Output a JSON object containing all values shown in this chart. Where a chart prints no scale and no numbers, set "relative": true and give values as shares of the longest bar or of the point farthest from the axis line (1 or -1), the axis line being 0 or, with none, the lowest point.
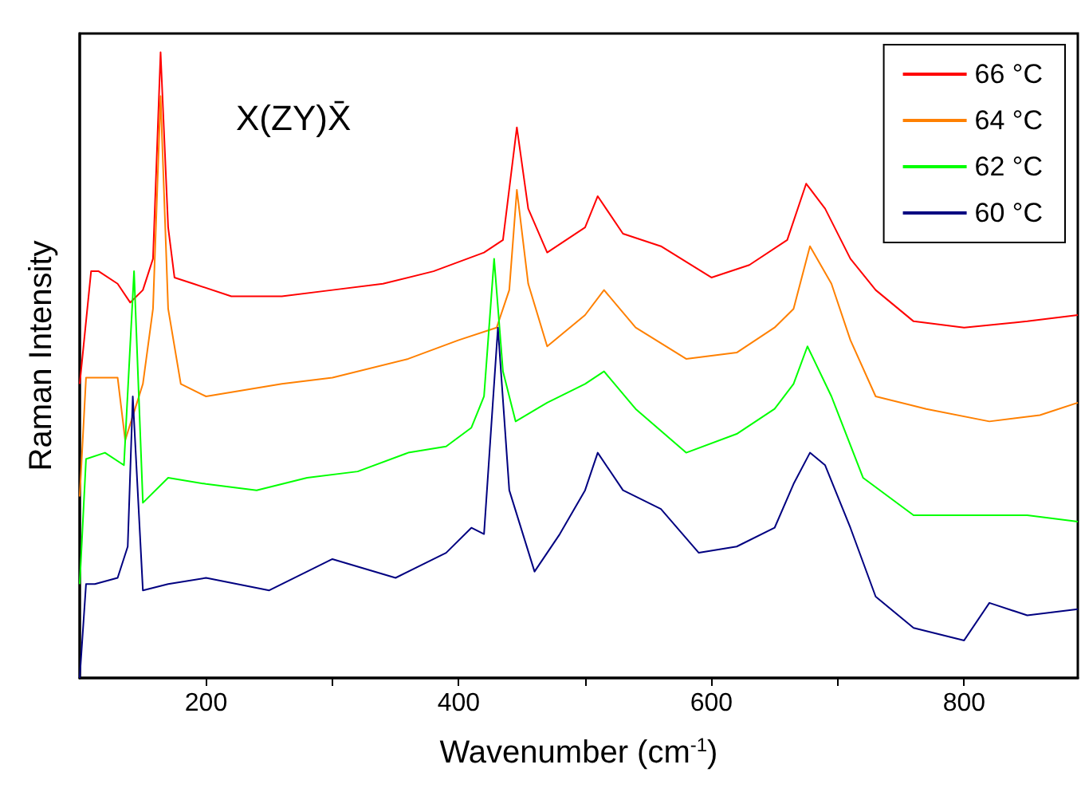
{
  "chart_data": {
    "type": "line",
    "relative": true,
    "xlabel": "Wavenumber (cm$^{-1}$)",
    "ylabel": "Raman Intensity",
    "annotations": [
      "X(ZY)X̄"
    ],
    "legend": "top right",
    "grid": false,
    "marker": "none",
    "line_style": "solid",
    "tick_labels": "x",
    "xlim": [
      100,
      890
    ],
    "xticks": [
      200,
      {
        "value": 300,
        "label": null
      },
      400,
      {
        "value": 500,
        "label": null
      },
      600,
      {
        "value": 700,
        "label": null
      },
      800
    ],
    "series": [
      {
        "name": "66 °C",
        "color": "#ff0000",
        "x": [
          100,
          109,
          115,
          130,
          140,
          150,
          158,
          164,
          170,
          175,
          190,
          220,
          260,
          300,
          340,
          380,
          420,
          435,
          446,
          455,
          470,
          500,
          510,
          530,
          560,
          600,
          630,
          660,
          675,
          690,
          710,
          730,
          760,
          800,
          850,
          890
        ],
        "values": [
          0.47,
          0.65,
          0.65,
          0.63,
          0.6,
          0.62,
          0.67,
          1.0,
          0.72,
          0.64,
          0.63,
          0.61,
          0.61,
          0.62,
          0.63,
          0.65,
          0.68,
          0.7,
          0.88,
          0.75,
          0.68,
          0.72,
          0.77,
          0.71,
          0.69,
          0.64,
          0.66,
          0.7,
          0.79,
          0.75,
          0.67,
          0.62,
          0.57,
          0.56,
          0.57,
          0.58
        ]
      },
      {
        "name": "64 °C",
        "color": "#ff8000",
        "x": [
          100,
          105,
          130,
          136,
          150,
          158,
          164,
          170,
          180,
          200,
          260,
          300,
          360,
          400,
          430,
          440,
          446,
          455,
          470,
          500,
          515,
          540,
          580,
          620,
          650,
          665,
          678,
          695,
          710,
          730,
          770,
          820,
          860,
          890
        ],
        "values": [
          0.29,
          0.48,
          0.48,
          0.38,
          0.47,
          0.59,
          0.93,
          0.59,
          0.47,
          0.45,
          0.47,
          0.48,
          0.51,
          0.54,
          0.56,
          0.62,
          0.78,
          0.63,
          0.53,
          0.58,
          0.62,
          0.56,
          0.51,
          0.52,
          0.56,
          0.59,
          0.69,
          0.63,
          0.54,
          0.45,
          0.43,
          0.41,
          0.42,
          0.44
        ]
      },
      {
        "name": "62 °C",
        "color": "#00ff00",
        "x": [
          100,
          105,
          120,
          135,
          143,
          150,
          170,
          200,
          240,
          280,
          320,
          360,
          390,
          410,
          420,
          428,
          435,
          445,
          470,
          500,
          515,
          540,
          580,
          620,
          650,
          665,
          676,
          695,
          720,
          760,
          800,
          850,
          890
        ],
        "values": [
          0.15,
          0.35,
          0.36,
          0.34,
          0.65,
          0.28,
          0.32,
          0.31,
          0.3,
          0.32,
          0.33,
          0.36,
          0.37,
          0.4,
          0.45,
          0.67,
          0.49,
          0.41,
          0.44,
          0.47,
          0.49,
          0.43,
          0.36,
          0.39,
          0.43,
          0.47,
          0.53,
          0.45,
          0.32,
          0.26,
          0.26,
          0.26,
          0.25
        ]
      },
      {
        "name": "60 °C",
        "color": "#000080",
        "x": [
          100,
          105,
          112,
          130,
          138,
          142,
          150,
          170,
          200,
          250,
          300,
          350,
          390,
          410,
          420,
          431,
          440,
          460,
          480,
          500,
          510,
          530,
          560,
          590,
          620,
          650,
          665,
          678,
          690,
          710,
          730,
          760,
          800,
          820,
          850,
          890
        ],
        "values": [
          0,
          0.15,
          0.15,
          0.16,
          0.21,
          0.45,
          0.14,
          0.15,
          0.16,
          0.14,
          0.19,
          0.16,
          0.2,
          0.24,
          0.23,
          0.56,
          0.3,
          0.17,
          0.23,
          0.3,
          0.36,
          0.3,
          0.27,
          0.2,
          0.21,
          0.24,
          0.31,
          0.36,
          0.34,
          0.24,
          0.13,
          0.08,
          0.06,
          0.12,
          0.1,
          0.11
        ]
      }
    ]
  }
}
